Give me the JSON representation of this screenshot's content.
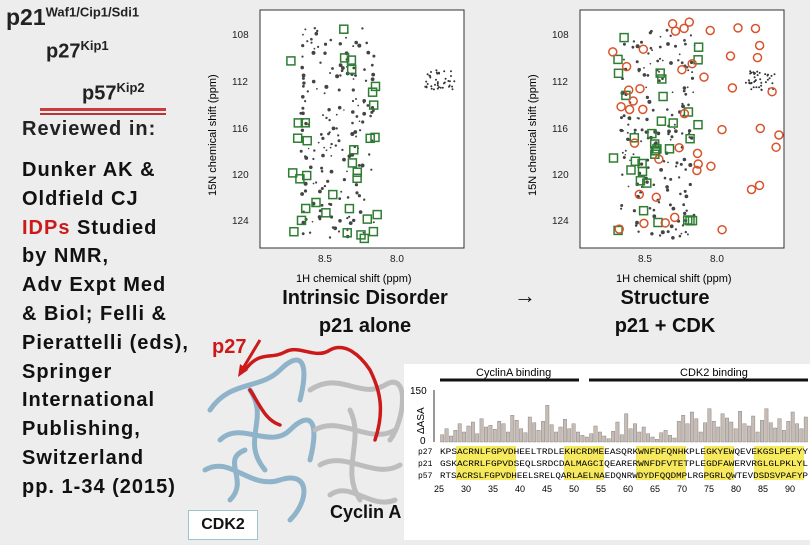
{
  "titles": {
    "p21_base": "p21",
    "p21_sup": "Waf1/Cip1/Sdi1",
    "p27_base": "p27",
    "p27_sup": "Kip1",
    "p57_base": "p57",
    "p57_sup": "Kip2"
  },
  "reviewed_label": "Reviewed in:",
  "reference": {
    "line1": "Dunker AK &",
    "line2": "Oldfield CJ",
    "idps": "IDPs",
    "studied": " Studied",
    "line4": "by NMR,",
    "line5": "Adv Expt Med",
    "line6": "& Biol; Felli &",
    "line7": "Pierattelli (eds),",
    "line8": "Springer",
    "line9": "International",
    "line10": "Publishing,",
    "line11": "Switzerland",
    "line12": "pp. 1-34 (2015)"
  },
  "spectra": {
    "y_axis_label": "15N chemical shift (ppm)",
    "x_axis_label": "1H chemical shift (ppm)",
    "y_ticks": [
      "108",
      "112",
      "116",
      "120",
      "124"
    ],
    "x_ticks": [
      "8.5",
      "8.0"
    ]
  },
  "captions": {
    "left_line1": "Intrinsic Disorder",
    "left_line2": "p21 alone",
    "arrow": "→",
    "right_line1": "Structure",
    "right_line2": "p21 + CDK"
  },
  "structure": {
    "p27_label": "p27",
    "cdk2_label": "CDK2",
    "cyclin_label": "Cyclin A"
  },
  "alignment": {
    "cyclin_binding": "CyclinA binding",
    "cdk2_binding": "CDK2 binding",
    "dasa_label": "ΔASA",
    "y150": "150",
    "y0": "0",
    "rows": [
      {
        "name": "p27",
        "seq": "KPSACRNLFGPVDHEELTRDLEKHCRDMEEASQRKWNFDFQNHKPLEGKYEWQEVEKGSLPEFYY"
      },
      {
        "name": "p21",
        "seq": "GSKACRRLFGPVDSEQLSRDCDALMAGCIQEARERWNFDFVTETPLEGDFAWERVRGLGLPKLYL"
      },
      {
        "name": "p57",
        "seq": "RTSACRSLFGPVDHEELSRELQARLAELNAEDQNRWDYDFQQDMPLRGPGRLQWTEVDSDSVPAFYP"
      }
    ],
    "ticks": [
      "25",
      "30",
      "35",
      "40",
      "45",
      "50",
      "55",
      "60",
      "65",
      "70",
      "75",
      "80",
      "85",
      "90"
    ],
    "bars": [
      22,
      40,
      18,
      35,
      55,
      30,
      48,
      60,
      25,
      70,
      45,
      50,
      38,
      62,
      55,
      30,
      80,
      65,
      40,
      28,
      75,
      58,
      35,
      62,
      110,
      52,
      30,
      45,
      68,
      40,
      55,
      30,
      20,
      15,
      25,
      48,
      30,
      18,
      10,
      32,
      60,
      22,
      85,
      40,
      55,
      30,
      45,
      25,
      15,
      8,
      28,
      35,
      20,
      12,
      62,
      80,
      55,
      90,
      70,
      30,
      58,
      100,
      62,
      45,
      85,
      72,
      60,
      40,
      92,
      55,
      48,
      78,
      30,
      65,
      100,
      58,
      42,
      70,
      35,
      62,
      90,
      55,
      40,
      75
    ]
  },
  "colors": {
    "red_accent": "#cc1a1a",
    "green_marker": "#2e7d32",
    "orange_marker": "#d8532a",
    "bar_fill": "#c7bbb3",
    "highlight": "#f5e642",
    "cdk2_ribbon": "#a9c9dd",
    "cyclin_ribbon": "#d6d6d6"
  }
}
